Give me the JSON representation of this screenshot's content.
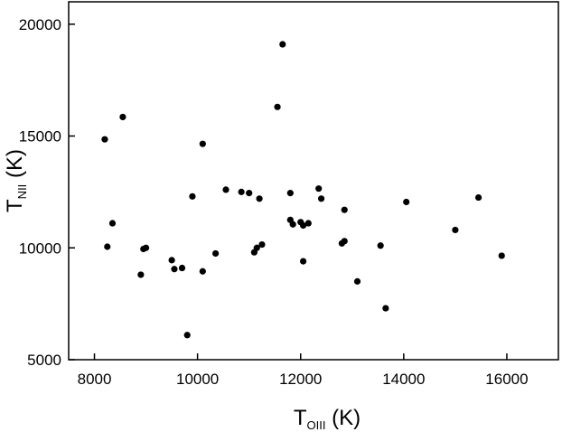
{
  "chart_data": {
    "type": "scatter",
    "title": "",
    "xlabel": {
      "main": "T",
      "sub": "OIII",
      "unit": " (K)"
    },
    "ylabel": {
      "main": "T",
      "sub": "NII",
      "unit": " (K)"
    },
    "xlim": [
      7500,
      17000
    ],
    "ylim": [
      5000,
      21000
    ],
    "x_ticks": [
      8000,
      10000,
      12000,
      14000,
      16000
    ],
    "y_ticks": [
      5000,
      10000,
      15000,
      20000
    ],
    "grid": false,
    "marker_color": "#000000",
    "points": [
      {
        "x": 8200,
        "y": 14850
      },
      {
        "x": 8250,
        "y": 10050
      },
      {
        "x": 8350,
        "y": 11100
      },
      {
        "x": 8550,
        "y": 15850
      },
      {
        "x": 8900,
        "y": 8800
      },
      {
        "x": 8950,
        "y": 9950
      },
      {
        "x": 9000,
        "y": 10000
      },
      {
        "x": 9500,
        "y": 9450
      },
      {
        "x": 9550,
        "y": 9050
      },
      {
        "x": 9700,
        "y": 9100
      },
      {
        "x": 9800,
        "y": 6100
      },
      {
        "x": 9900,
        "y": 12300
      },
      {
        "x": 10100,
        "y": 8950
      },
      {
        "x": 10100,
        "y": 14650
      },
      {
        "x": 10350,
        "y": 9750
      },
      {
        "x": 10550,
        "y": 12600
      },
      {
        "x": 10850,
        "y": 12500
      },
      {
        "x": 11000,
        "y": 12450
      },
      {
        "x": 11100,
        "y": 9800
      },
      {
        "x": 11150,
        "y": 10000
      },
      {
        "x": 11200,
        "y": 12200
      },
      {
        "x": 11250,
        "y": 10150
      },
      {
        "x": 11550,
        "y": 16300
      },
      {
        "x": 11650,
        "y": 19100
      },
      {
        "x": 11800,
        "y": 11250
      },
      {
        "x": 11800,
        "y": 12450
      },
      {
        "x": 11850,
        "y": 11050
      },
      {
        "x": 12000,
        "y": 11150
      },
      {
        "x": 12050,
        "y": 9400
      },
      {
        "x": 12050,
        "y": 11000
      },
      {
        "x": 12150,
        "y": 11100
      },
      {
        "x": 12350,
        "y": 12650
      },
      {
        "x": 12400,
        "y": 12200
      },
      {
        "x": 12800,
        "y": 10200
      },
      {
        "x": 12850,
        "y": 10300
      },
      {
        "x": 12850,
        "y": 11700
      },
      {
        "x": 13100,
        "y": 8500
      },
      {
        "x": 13550,
        "y": 10100
      },
      {
        "x": 13650,
        "y": 7300
      },
      {
        "x": 14050,
        "y": 12050
      },
      {
        "x": 15000,
        "y": 10800
      },
      {
        "x": 15450,
        "y": 12250
      },
      {
        "x": 15900,
        "y": 9650
      }
    ]
  }
}
